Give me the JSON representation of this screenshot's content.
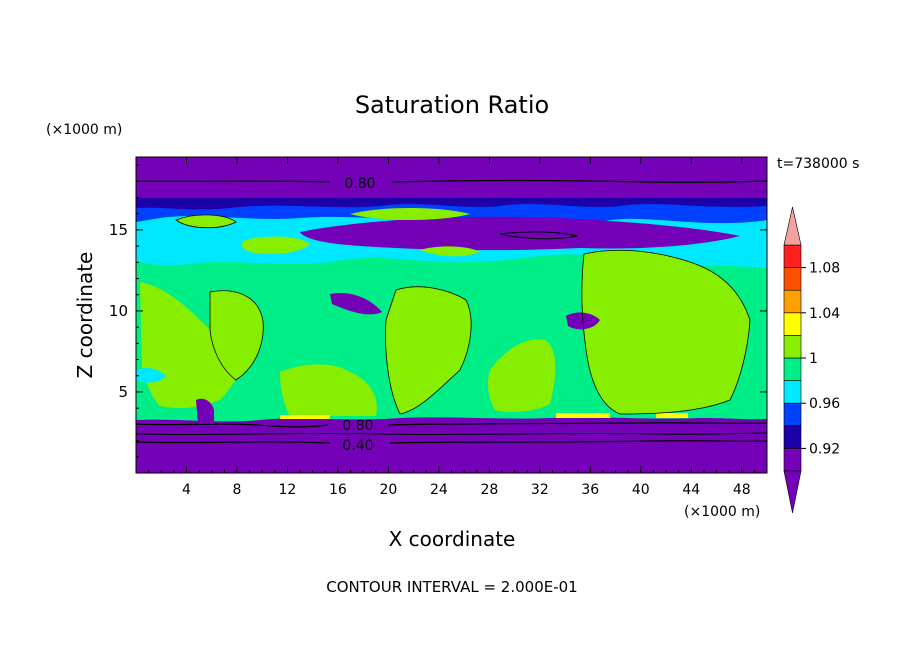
{
  "chart_data": {
    "type": "heatmap",
    "title": "Saturation Ratio",
    "xlabel": "X coordinate",
    "ylabel": "Z coordinate",
    "x_unit": "(×1000 m)",
    "y_unit": "(×1000 m)",
    "time_label": "t=738000 s",
    "footer": "CONTOUR INTERVAL = 2.000E-01",
    "xlim": [
      0,
      50
    ],
    "ylim": [
      0,
      19.5
    ],
    "x_ticks": [
      "4",
      "8",
      "12",
      "16",
      "20",
      "24",
      "28",
      "32",
      "36",
      "40",
      "44",
      "48"
    ],
    "y_ticks": [
      "5",
      "10",
      "15"
    ],
    "contour_labels": [
      "0.80",
      "0.80",
      "0.40"
    ],
    "colorbar": {
      "levels": [
        0.9,
        0.92,
        0.94,
        0.96,
        0.98,
        1.0,
        1.02,
        1.04,
        1.06,
        1.08,
        1.1
      ],
      "tick_labels": [
        "0.92",
        "0.96",
        "1",
        "1.04",
        "1.08"
      ],
      "colors": [
        "#7400b8",
        "#1c00a8",
        "#0040ff",
        "#00e8ff",
        "#00ee88",
        "#88ee00",
        "#ffff00",
        "#ffa000",
        "#ff5000",
        "#ff2020",
        "#f4a0a0"
      ]
    },
    "regions": [
      {
        "band": "z 0–3.3",
        "value": 0.4,
        "color": "#7400b8"
      },
      {
        "band": "z 3.3–12.5",
        "value": 0.98,
        "color": "#00ee88"
      },
      {
        "band": "z 12.5–14.5",
        "value": 0.97,
        "color": "#00e8ff"
      },
      {
        "band": "z 14.5–16.5",
        "value": 0.85,
        "color": "#7400b8"
      },
      {
        "band": "z 17.5–19.5",
        "value": 0.8,
        "color": "#7400b8"
      }
    ]
  }
}
